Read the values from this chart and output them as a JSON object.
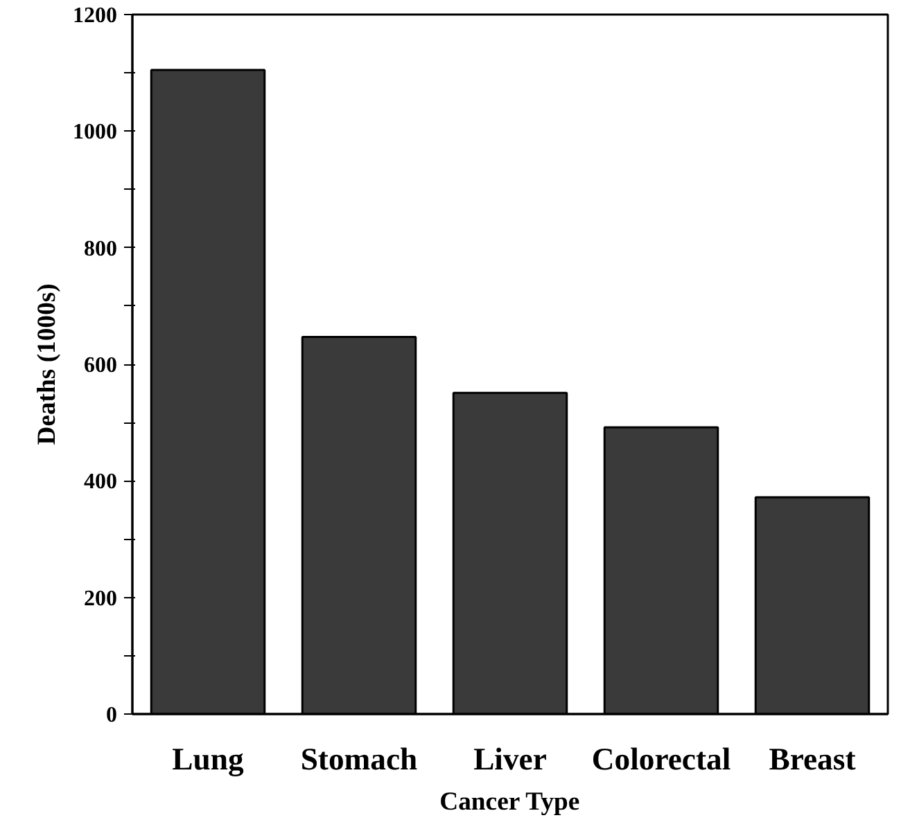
{
  "chart_data": {
    "type": "bar",
    "xlabel": "Cancer Type",
    "ylabel": "Deaths (1000s)",
    "categories": [
      "Lung",
      "Stomach",
      "Liver",
      "Colorectal",
      "Breast"
    ],
    "values": [
      1105,
      647,
      551,
      492,
      372
    ],
    "color": "#3a3a3a",
    "ylim": [
      0,
      1200
    ],
    "yticks": [
      0,
      {
        "value": 100,
        "label": null
      },
      200,
      {
        "value": 300,
        "label": null
      },
      400,
      {
        "value": 500,
        "label": null
      },
      600,
      {
        "value": 700,
        "label": null
      },
      800,
      {
        "value": 900,
        "label": null
      },
      1000,
      {
        "value": 1100,
        "label": null
      },
      1200
    ],
    "grid": false
  }
}
